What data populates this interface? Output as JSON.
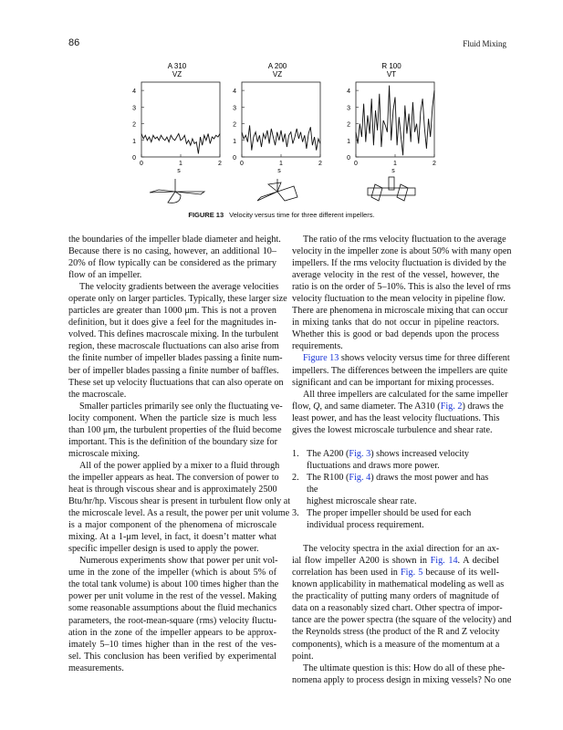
{
  "header": {
    "page_number": "86",
    "running_head": "Fluid Mixing"
  },
  "figure": {
    "label": "FIGURE 13",
    "caption": "Velocity versus time for three different impellers.",
    "link_color": "#1a35d6"
  },
  "chart_data": [
    {
      "type": "line",
      "title": "A 310",
      "subtitle": "VZ",
      "xlabel": "s",
      "xlim": [
        0,
        2
      ],
      "ylim": [
        0,
        4.5
      ],
      "xticks": [
        "0",
        "1",
        "2"
      ],
      "yticks": [
        "0",
        "1",
        "2",
        "3",
        "4"
      ],
      "x_step": 0.05,
      "values": [
        1.4,
        1.1,
        1.3,
        1.0,
        1.2,
        0.9,
        1.3,
        1.1,
        1.2,
        1.0,
        1.3,
        1.1,
        1.0,
        1.2,
        0.9,
        1.3,
        1.1,
        1.0,
        1.2,
        1.4,
        1.0,
        1.1,
        1.3,
        0.8,
        1.0,
        0.7,
        1.1,
        0.8,
        0.9,
        0.2,
        1.2,
        0.7,
        1.3,
        1.0,
        1.4,
        0.8,
        1.2,
        1.1,
        1.3,
        1.2,
        1.4
      ],
      "impeller": "A310"
    },
    {
      "type": "line",
      "title": "A 200",
      "subtitle": "VZ",
      "xlabel": "s",
      "xlim": [
        0,
        2
      ],
      "ylim": [
        0,
        4.5
      ],
      "xticks": [
        "0",
        "1",
        "2"
      ],
      "yticks": [
        "0",
        "1",
        "2",
        "3",
        "4"
      ],
      "x_step": 0.05,
      "values": [
        1.5,
        1.1,
        1.3,
        0.9,
        1.9,
        0.4,
        1.2,
        1.5,
        0.9,
        1.3,
        0.6,
        1.4,
        1.1,
        1.6,
        0.8,
        1.7,
        1.2,
        0.7,
        1.5,
        1.0,
        1.6,
        0.9,
        1.4,
        0.6,
        1.3,
        1.5,
        0.8,
        1.2,
        1.7,
        1.1,
        1.5,
        0.9,
        1.3,
        0.5,
        1.4,
        1.8,
        0.7,
        1.2,
        0.4,
        1.1,
        0.8
      ],
      "impeller": "A200"
    },
    {
      "type": "line",
      "title": "R 100",
      "subtitle": "VT",
      "xlabel": "s",
      "xlim": [
        0,
        2
      ],
      "ylim": [
        0,
        4.5
      ],
      "xticks": [
        "0",
        "1",
        "2"
      ],
      "yticks": [
        "0",
        "1",
        "2",
        "3",
        "4"
      ],
      "x_step": 0.05,
      "values": [
        1.5,
        0.8,
        2.0,
        1.2,
        3.2,
        0.9,
        2.5,
        1.4,
        3.5,
        0.7,
        2.8,
        1.6,
        3.8,
        0.6,
        2.2,
        1.9,
        1.5,
        4.3,
        1.0,
        2.8,
        3.6,
        0.7,
        2.4,
        1.2,
        0.1,
        3.1,
        1.4,
        2.6,
        0.9,
        3.3,
        1.5,
        2.0,
        0.8,
        2.7,
        3.5,
        1.7,
        0.5,
        2.3,
        1.2,
        3.0,
        4.0
      ],
      "impeller": "R100"
    }
  ],
  "left_column": [
    {
      "indent": false,
      "lines": [
        "the boundaries of the impeller blade diameter and height.",
        "Because there is no casing, however, an additional 10–",
        "20% of flow typically can be considered as the primary",
        "flow of an impeller."
      ]
    },
    {
      "indent": true,
      "lines": [
        "The velocity gradients between the average velocities",
        "operate only on larger particles. Typically, these larger size",
        "particles are greater than 1000 μm. This is not a proven",
        "definition, but it does give a feel for the magnitudes in-",
        "volved. This defines macroscale mixing. In the turbulent",
        "region, these macroscale fluctuations can also arise from",
        "the finite number of impeller blades passing a finite num-",
        "ber of impeller blades passing a finite number of baffles.",
        "These set up velocity fluctuations that can also operate on",
        "the macroscale."
      ]
    },
    {
      "indent": true,
      "lines": [
        "Smaller particles primarily see only the fluctuating ve-",
        "locity component. When the particle size is much less",
        "than 100 μm, the turbulent properties of the fluid become",
        "important. This is the definition of the boundary size for",
        "microscale mixing."
      ]
    },
    {
      "indent": true,
      "lines": [
        "All of the power applied by a mixer to a fluid through",
        "the impeller appears as heat. The conversion of power to",
        "heat is through viscous shear and is approximately 2500",
        "Btu/hr/hp. Viscous shear is present in turbulent flow only at",
        "the microscale level. As a result, the power per unit volume",
        "is a major component of the phenomena of microscale",
        "mixing. At a 1-μm level, in fact, it doesn’t matter what",
        "specific impeller design is used to apply the power."
      ]
    },
    {
      "indent": true,
      "lines": [
        "Numerous experiments show that power per unit vol-",
        "ume in the zone of the impeller (which is about 5% of",
        "the total tank volume) is about 100 times higher than the",
        "power per unit volume in the rest of the vessel. Making",
        "some reasonable assumptions about the fluid mechanics",
        "parameters, the root-mean-square (rms) velocity fluctu-",
        "ation in the zone of the impeller appears to be approx-",
        "imately 5–10 times higher than in the rest of the ves-",
        "sel. This conclusion has been verified by experimental",
        "measurements."
      ]
    }
  ],
  "right_column": {
    "para1": {
      "lines": [
        "The ratio of the rms velocity fluctuation to the average",
        "velocity in the impeller zone is about 50% with many open",
        "impellers. If the rms velocity fluctuation is divided by the",
        "average velocity in the rest of the vessel, however, the",
        "ratio is on the order of 5–10%. This is also the level of rms",
        "velocity fluctuation to the mean velocity in pipeline flow.",
        "There are phenomena in microscale mixing that can occur",
        "in mixing tanks that do not occur in pipeline reactors.",
        "Whether this is good or bad depends upon the process",
        "requirements."
      ]
    },
    "para2": {
      "link": "Figure 13",
      "line1_rest": " shows velocity versus time for three different",
      "lines": [
        "impellers. The differences between the impellers are quite",
        "significant and can be important for mixing processes."
      ]
    },
    "para3": {
      "line1": "All three impellers are calculated for the same impeller",
      "line2_a": "flow, ",
      "line2_q": "Q",
      "line2_b": ", and same diameter. The A310 (",
      "line2_link": "Fig. 2",
      "line2_c": ") draws the",
      "lines": [
        "least power, and has the least velocity fluctuations. This",
        "gives the lowest microscale turbulence and shear rate."
      ]
    },
    "list": [
      {
        "num": "1.",
        "a": "The A200 (",
        "link": "Fig. 3",
        "b": ") shows increased velocity",
        "cont": "fluctuations and draws more power."
      },
      {
        "num": "2.",
        "a": "The R100 (",
        "link": "Fig. 4",
        "b": ") draws the most power and has the",
        "cont": "highest microscale shear rate."
      },
      {
        "num": "3.",
        "a": "The proper impeller should be used for each",
        "link": "",
        "b": "",
        "cont": "individual process requirement."
      }
    ],
    "para4": {
      "line1": "The velocity spectra in the axial direction for an ax-",
      "line2_a": "ial flow impeller A200 is shown in ",
      "line2_link": "Fig. 14",
      "line2_b": ". A decibel",
      "line3_a": "correlation has been used in ",
      "line3_link": "Fig. 5",
      "line3_b": " because of its well-",
      "lines": [
        "known applicability in mathematical modeling as well as",
        "the practicality of putting many orders of magnitude of",
        "data on a reasonably sized chart. Other spectra of impor-",
        "tance are the power spectra (the square of the velocity) and",
        "the Reynolds stress (the product of the R and Z velocity",
        "components), which is a measure of the momentum at a",
        "point."
      ]
    },
    "para5": {
      "lines": [
        "The ultimate question is this: How do all of these phe-",
        "nomena apply to process design in mixing vessels? No one"
      ]
    }
  }
}
